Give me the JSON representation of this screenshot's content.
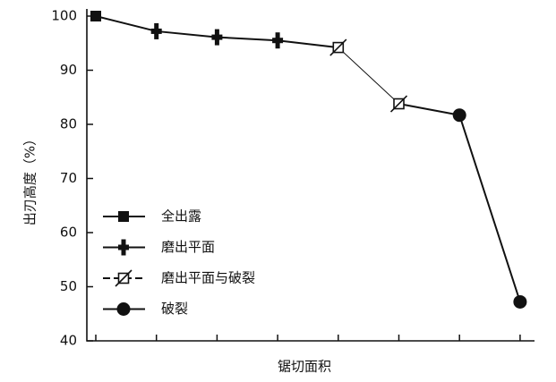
{
  "chart_data": {
    "type": "line",
    "ylabel": "出刃高度（%）",
    "xlabel": "锯切面积",
    "categories": [
      null,
      null,
      null,
      null,
      null,
      null,
      null,
      null
    ],
    "ylim": [
      40,
      100
    ],
    "yticks": [
      40,
      50,
      60,
      70,
      80,
      90,
      100
    ],
    "series": [
      {
        "name": "全出露",
        "color": "#111111",
        "marker": "square",
        "values": [
          100,
          null,
          null,
          null,
          null,
          null,
          null,
          null
        ]
      },
      {
        "name": "磨出平面",
        "color": "#111111",
        "marker": "plus",
        "values": [
          null,
          97.2,
          96.1,
          95.5,
          null,
          null,
          null,
          null
        ]
      },
      {
        "name": "磨出平面与破裂",
        "color": "#111111",
        "marker": "slashed-square",
        "values": [
          null,
          null,
          null,
          null,
          94.2,
          83.8,
          null,
          null
        ]
      },
      {
        "name": "破裂",
        "color": "#111111",
        "marker": "circle",
        "values": [
          null,
          null,
          null,
          null,
          null,
          null,
          81.7,
          47.2
        ]
      }
    ],
    "legend": "lower-left"
  }
}
